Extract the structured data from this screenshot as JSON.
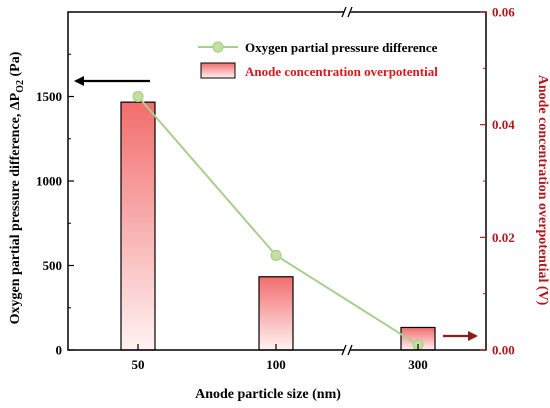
{
  "chart_data": {
    "type": "bar",
    "categories": [
      "50",
      "100",
      "300"
    ],
    "xlabel": "Anode particle size (nm)",
    "left_axis": {
      "label_main": "Oxygen partial pressure difference, ΔP",
      "label_sub": "O2",
      "label_unit": " (Pa)",
      "ylim": [
        0,
        2000
      ],
      "ticks": [
        0,
        500,
        1000,
        1500
      ]
    },
    "right_axis": {
      "label": "Anode concentration overpotential (V)",
      "ylim": [
        0,
        0.06
      ],
      "ticks": [
        "0.00",
        "0.02",
        "0.04",
        "0.06"
      ],
      "color": "#b0191e"
    },
    "series": [
      {
        "name": "Oxygen partial pressure difference",
        "kind": "line",
        "axis": "left",
        "values": [
          1500,
          560,
          30
        ],
        "color": "#a8d08d"
      },
      {
        "name": "Anode concentration overpotential",
        "kind": "bar",
        "axis": "right",
        "values": [
          0.044,
          0.013,
          0.004
        ],
        "color_top": "#f26d6d",
        "color_bottom": "#fff2f2",
        "legend_color": "#d7191c"
      }
    ],
    "annotations": [
      {
        "type": "arrow",
        "direction": "left",
        "axis": "left",
        "label": "points to left axis"
      },
      {
        "type": "arrow",
        "direction": "right",
        "axis": "right",
        "label": "points to right axis"
      }
    ],
    "axis_breaks": "x axis broken between 100 and 300"
  }
}
